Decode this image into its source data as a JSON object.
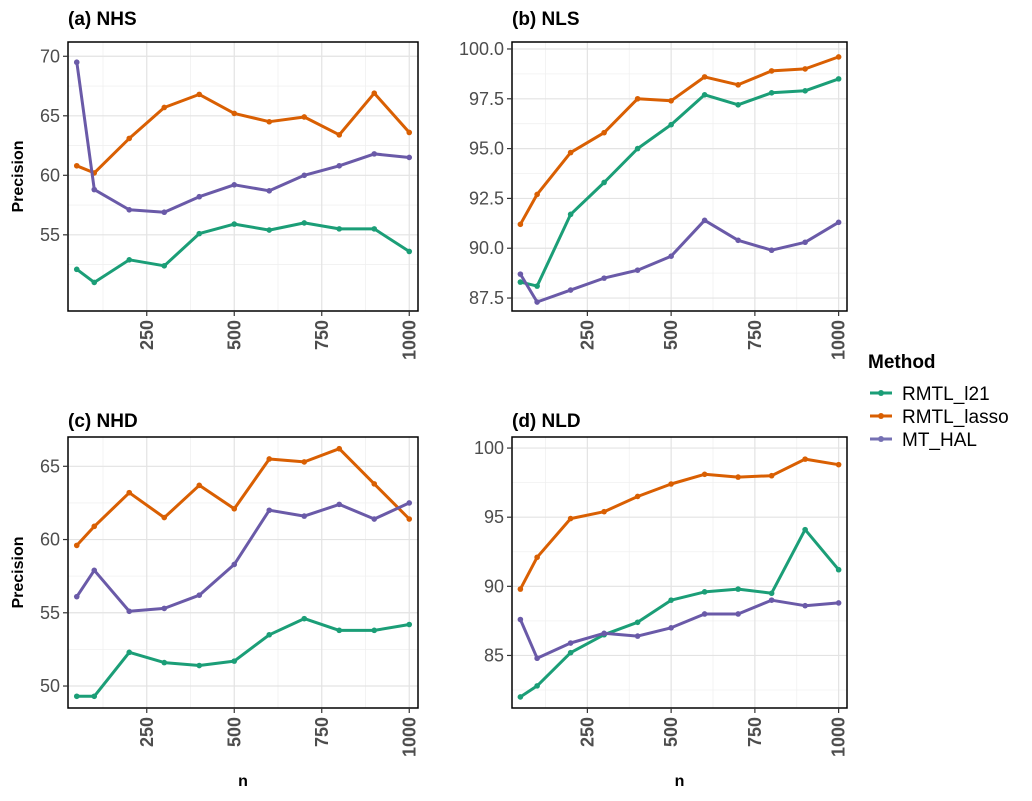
{
  "chart_data": [
    {
      "type": "line",
      "title": "(a) NHS",
      "xlabel": "",
      "ylabel": "Precision",
      "xlim": [
        25,
        1025
      ],
      "ylim": [
        48.6,
        71.2
      ],
      "xticks": [
        250,
        500,
        750,
        1000
      ],
      "yticks": [
        55,
        60,
        65,
        70
      ],
      "grid": true,
      "x": [
        50,
        100,
        200,
        300,
        400,
        500,
        600,
        700,
        800,
        900,
        1000
      ],
      "series": [
        {
          "name": "RMTL_l21",
          "values": [
            52.1,
            51.0,
            52.9,
            52.4,
            55.1,
            55.9,
            55.4,
            56.0,
            55.5,
            55.5,
            53.6
          ]
        },
        {
          "name": "RMTL_lasso",
          "values": [
            60.8,
            60.2,
            63.1,
            65.7,
            66.8,
            65.2,
            64.5,
            64.9,
            63.4,
            66.9,
            63.6
          ]
        },
        {
          "name": "MT_HAL",
          "values": [
            69.5,
            58.8,
            57.1,
            56.9,
            58.2,
            59.2,
            58.7,
            60.0,
            60.8,
            61.8,
            61.5
          ]
        }
      ]
    },
    {
      "type": "line",
      "title": "(b) NLS",
      "xlabel": "",
      "ylabel": "",
      "xlim": [
        25,
        1025
      ],
      "ylim": [
        86.85,
        100.35
      ],
      "xticks": [
        250,
        500,
        750,
        1000
      ],
      "yticks": [
        87.5,
        90.0,
        92.5,
        95.0,
        97.5,
        100.0
      ],
      "ytick_labels": [
        "87.5",
        "90.0",
        "92.5",
        "95.0",
        "97.5",
        "100.0"
      ],
      "grid": true,
      "x": [
        50,
        100,
        200,
        300,
        400,
        500,
        600,
        700,
        800,
        900,
        1000
      ],
      "series": [
        {
          "name": "RMTL_l21",
          "values": [
            88.3,
            88.1,
            91.7,
            93.3,
            95.0,
            96.2,
            97.7,
            97.2,
            97.8,
            97.9,
            98.5
          ]
        },
        {
          "name": "RMTL_lasso",
          "values": [
            91.2,
            92.7,
            94.8,
            95.8,
            97.5,
            97.4,
            98.6,
            98.2,
            98.9,
            99.0,
            99.6
          ]
        },
        {
          "name": "MT_HAL",
          "values": [
            88.7,
            87.3,
            87.9,
            88.5,
            88.9,
            89.6,
            91.4,
            90.4,
            89.9,
            90.3,
            91.3
          ]
        }
      ]
    },
    {
      "type": "line",
      "title": "(c) NHD",
      "xlabel": "n",
      "ylabel": "Precision",
      "xlim": [
        25,
        1025
      ],
      "ylim": [
        48.5,
        67.0
      ],
      "xticks": [
        250,
        500,
        750,
        1000
      ],
      "yticks": [
        50,
        55,
        60,
        65
      ],
      "grid": true,
      "x": [
        50,
        100,
        200,
        300,
        400,
        500,
        600,
        700,
        800,
        900,
        1000
      ],
      "series": [
        {
          "name": "RMTL_l21",
          "values": [
            49.3,
            49.3,
            52.3,
            51.6,
            51.4,
            51.7,
            53.5,
            54.6,
            53.8,
            53.8,
            54.2
          ]
        },
        {
          "name": "RMTL_lasso",
          "values": [
            59.6,
            60.9,
            63.2,
            61.5,
            63.7,
            62.1,
            65.5,
            65.3,
            66.2,
            63.8,
            61.4
          ]
        },
        {
          "name": "MT_HAL",
          "values": [
            56.1,
            57.9,
            55.1,
            55.3,
            56.2,
            58.3,
            62.0,
            61.6,
            62.4,
            61.4,
            62.5
          ]
        }
      ]
    },
    {
      "type": "line",
      "title": "(d) NLD",
      "xlabel": "n",
      "ylabel": "",
      "xlim": [
        25,
        1025
      ],
      "ylim": [
        81.2,
        100.8
      ],
      "xticks": [
        250,
        500,
        750,
        1000
      ],
      "yticks": [
        85,
        90,
        95,
        100
      ],
      "grid": true,
      "x": [
        50,
        100,
        200,
        300,
        400,
        500,
        600,
        700,
        800,
        900,
        1000
      ],
      "series": [
        {
          "name": "RMTL_l21",
          "values": [
            82.0,
            82.8,
            85.2,
            86.5,
            87.4,
            89.0,
            89.6,
            89.8,
            89.5,
            94.1,
            91.2
          ]
        },
        {
          "name": "RMTL_lasso",
          "values": [
            89.8,
            92.1,
            94.9,
            95.4,
            96.5,
            97.4,
            98.1,
            97.9,
            98.0,
            99.2,
            98.8
          ]
        },
        {
          "name": "MT_HAL",
          "values": [
            87.6,
            84.8,
            85.9,
            86.6,
            86.4,
            87.0,
            88.0,
            88.0,
            89.0,
            88.6,
            88.8
          ]
        }
      ]
    }
  ],
  "legend": {
    "title": "Method",
    "placement": "right",
    "entries": [
      {
        "label": "RMTL_l21",
        "color": "#1b9e77"
      },
      {
        "label": "RMTL_lasso",
        "color": "#d95f02"
      },
      {
        "label": "MT_HAL",
        "color": "#7570b3"
      }
    ]
  },
  "colors": {
    "RMTL_l21": "#1b9e77",
    "RMTL_lasso": "#d95f02",
    "MT_HAL": "#6a5aa8"
  }
}
